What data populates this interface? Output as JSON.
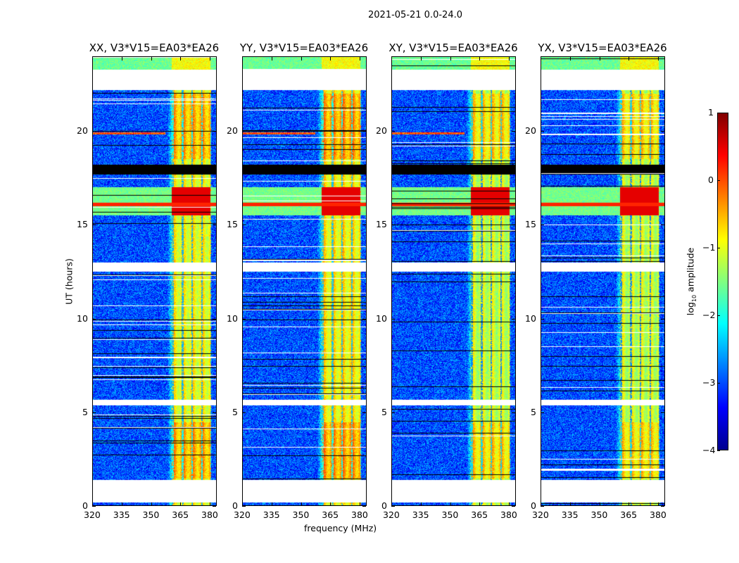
{
  "chart_data": {
    "type": "heatmap",
    "title": "2021-05-21 0.0-24.0",
    "xlabel": "frequency (MHz)",
    "ylabel": "UT (hours)",
    "xlim": [
      320,
      384
    ],
    "ylim": [
      0,
      24
    ],
    "xticks": [
      "320",
      "335",
      "350",
      "365",
      "380"
    ],
    "yticks": [
      "0",
      "5",
      "10",
      "15",
      "20"
    ],
    "panels": [
      {
        "title": "XX, V3*V15=EA03*EA26",
        "rfi_strength": 1.0
      },
      {
        "title": "YY, V3*V15=EA03*EA26",
        "rfi_strength": 1.05
      },
      {
        "title": "XY, V3*V15=EA03*EA26",
        "rfi_strength": 0.9
      },
      {
        "title": "YX, V3*V15=EA03*EA26",
        "rfi_strength": 0.9
      }
    ],
    "flagged_hours_white": [
      [
        0.2,
        1.4
      ],
      [
        12.5,
        13.0
      ],
      [
        5.4,
        5.7
      ],
      [
        22.2,
        23.3
      ]
    ],
    "flagged_hours_black": [
      [
        17.7,
        18.2
      ]
    ],
    "strong_rfi_freq_MHz": [
      360,
      380
    ],
    "strong_rfi_hours": [
      15.5,
      17.0
    ],
    "colorbar": {
      "label": "log10 amplitude",
      "label_main": "log",
      "label_sub": "10",
      "label_rest": " amplitude",
      "range": [
        -4,
        1
      ],
      "ticks": [
        "1",
        "0",
        "−1",
        "−2",
        "−3",
        "−4"
      ]
    }
  }
}
